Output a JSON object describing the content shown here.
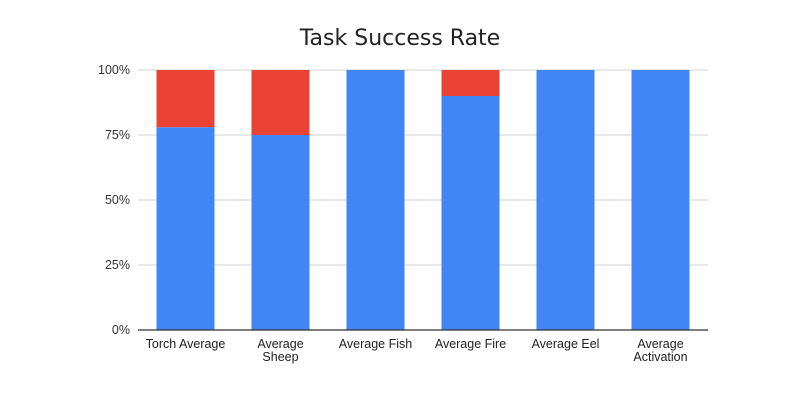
{
  "chart_data": {
    "type": "bar",
    "stacked": true,
    "title": "Task Success Rate",
    "xlabel": "",
    "ylabel": "",
    "categories": [
      [
        "Torch Average"
      ],
      [
        "Average",
        "Sheep"
      ],
      [
        "Average Fish"
      ],
      [
        "Average Fire"
      ],
      [
        "Average Eel"
      ],
      [
        "Average",
        "Activation"
      ]
    ],
    "series": [
      {
        "values": [
          78,
          75,
          100,
          90,
          100,
          100
        ],
        "color": "#4285f4"
      },
      {
        "values": [
          22,
          25,
          0,
          10,
          0,
          0
        ],
        "color": "#ea4335"
      }
    ],
    "ylim": [
      0,
      100
    ],
    "yticks": [
      0,
      25,
      50,
      75,
      100
    ],
    "ytick_labels": [
      "0%",
      "25%",
      "50%",
      "75%",
      "100%"
    ],
    "grid": true,
    "legend": "none"
  }
}
